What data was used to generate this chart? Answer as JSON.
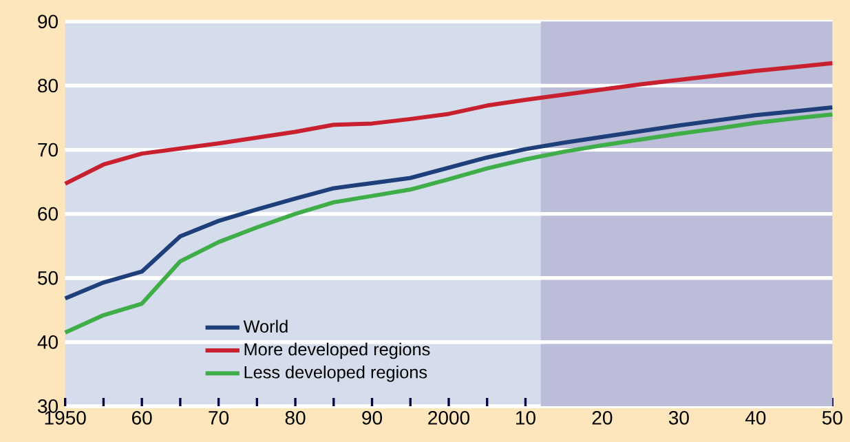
{
  "chart_data": {
    "type": "line",
    "x": [
      1950,
      1955,
      1960,
      1965,
      1970,
      1975,
      1980,
      1985,
      1990,
      1995,
      2000,
      2005,
      2010,
      2015,
      2020,
      2025,
      2030,
      2035,
      2040,
      2045,
      2050
    ],
    "series": [
      {
        "name": "World",
        "color": "#1f3f7a",
        "values": [
          46.8,
          49.3,
          51.0,
          56.5,
          58.9,
          60.7,
          62.4,
          64.0,
          64.8,
          65.6,
          67.2,
          68.8,
          70.1,
          71.1,
          72.0,
          72.9,
          73.8,
          74.6,
          75.4,
          76.0,
          76.6
        ]
      },
      {
        "name": "More developed regions",
        "color": "#c8202f",
        "values": [
          64.7,
          67.7,
          69.4,
          70.2,
          71.0,
          71.9,
          72.8,
          73.9,
          74.1,
          74.8,
          75.6,
          76.9,
          77.8,
          78.6,
          79.4,
          80.2,
          80.9,
          81.6,
          82.3,
          82.9,
          83.5
        ]
      },
      {
        "name": "Less developed regions",
        "color": "#3fae49",
        "values": [
          41.5,
          44.2,
          46.0,
          52.6,
          55.6,
          57.9,
          60.0,
          61.8,
          62.8,
          63.8,
          65.4,
          67.1,
          68.5,
          69.7,
          70.7,
          71.6,
          72.5,
          73.3,
          74.2,
          74.9,
          75.5
        ]
      }
    ],
    "xlim": [
      1950,
      2050
    ],
    "xticks": [
      {
        "value": 1950,
        "label": "1950"
      },
      {
        "value": 1955,
        "label": null
      },
      {
        "value": 1960,
        "label": "60"
      },
      {
        "value": 1965,
        "label": null
      },
      {
        "value": 1970,
        "label": "70"
      },
      {
        "value": 1975,
        "label": null
      },
      {
        "value": 1980,
        "label": "80"
      },
      {
        "value": 1985,
        "label": null
      },
      {
        "value": 1990,
        "label": "90"
      },
      {
        "value": 1995,
        "label": null
      },
      {
        "value": 2000,
        "label": "2000"
      },
      {
        "value": 2005,
        "label": null
      },
      {
        "value": 2010,
        "label": "10"
      },
      {
        "value": 2015,
        "label": null
      },
      {
        "value": 2020,
        "label": "20"
      },
      {
        "value": 2025,
        "label": null
      },
      {
        "value": 2030,
        "label": "30"
      },
      {
        "value": 2035,
        "label": null
      },
      {
        "value": 2040,
        "label": "40"
      },
      {
        "value": 2045,
        "label": null
      },
      {
        "value": 2050,
        "label": "50"
      }
    ],
    "ylim": [
      30,
      90
    ],
    "yticks": [
      30,
      40,
      50,
      60,
      70,
      80,
      90
    ],
    "bands": [
      {
        "axis": "x",
        "from": 2012,
        "to": 2050,
        "color": "#bcbdd8"
      }
    ],
    "grid": "y",
    "legend": "bottom left",
    "marker": "none",
    "line_style": "solid"
  }
}
